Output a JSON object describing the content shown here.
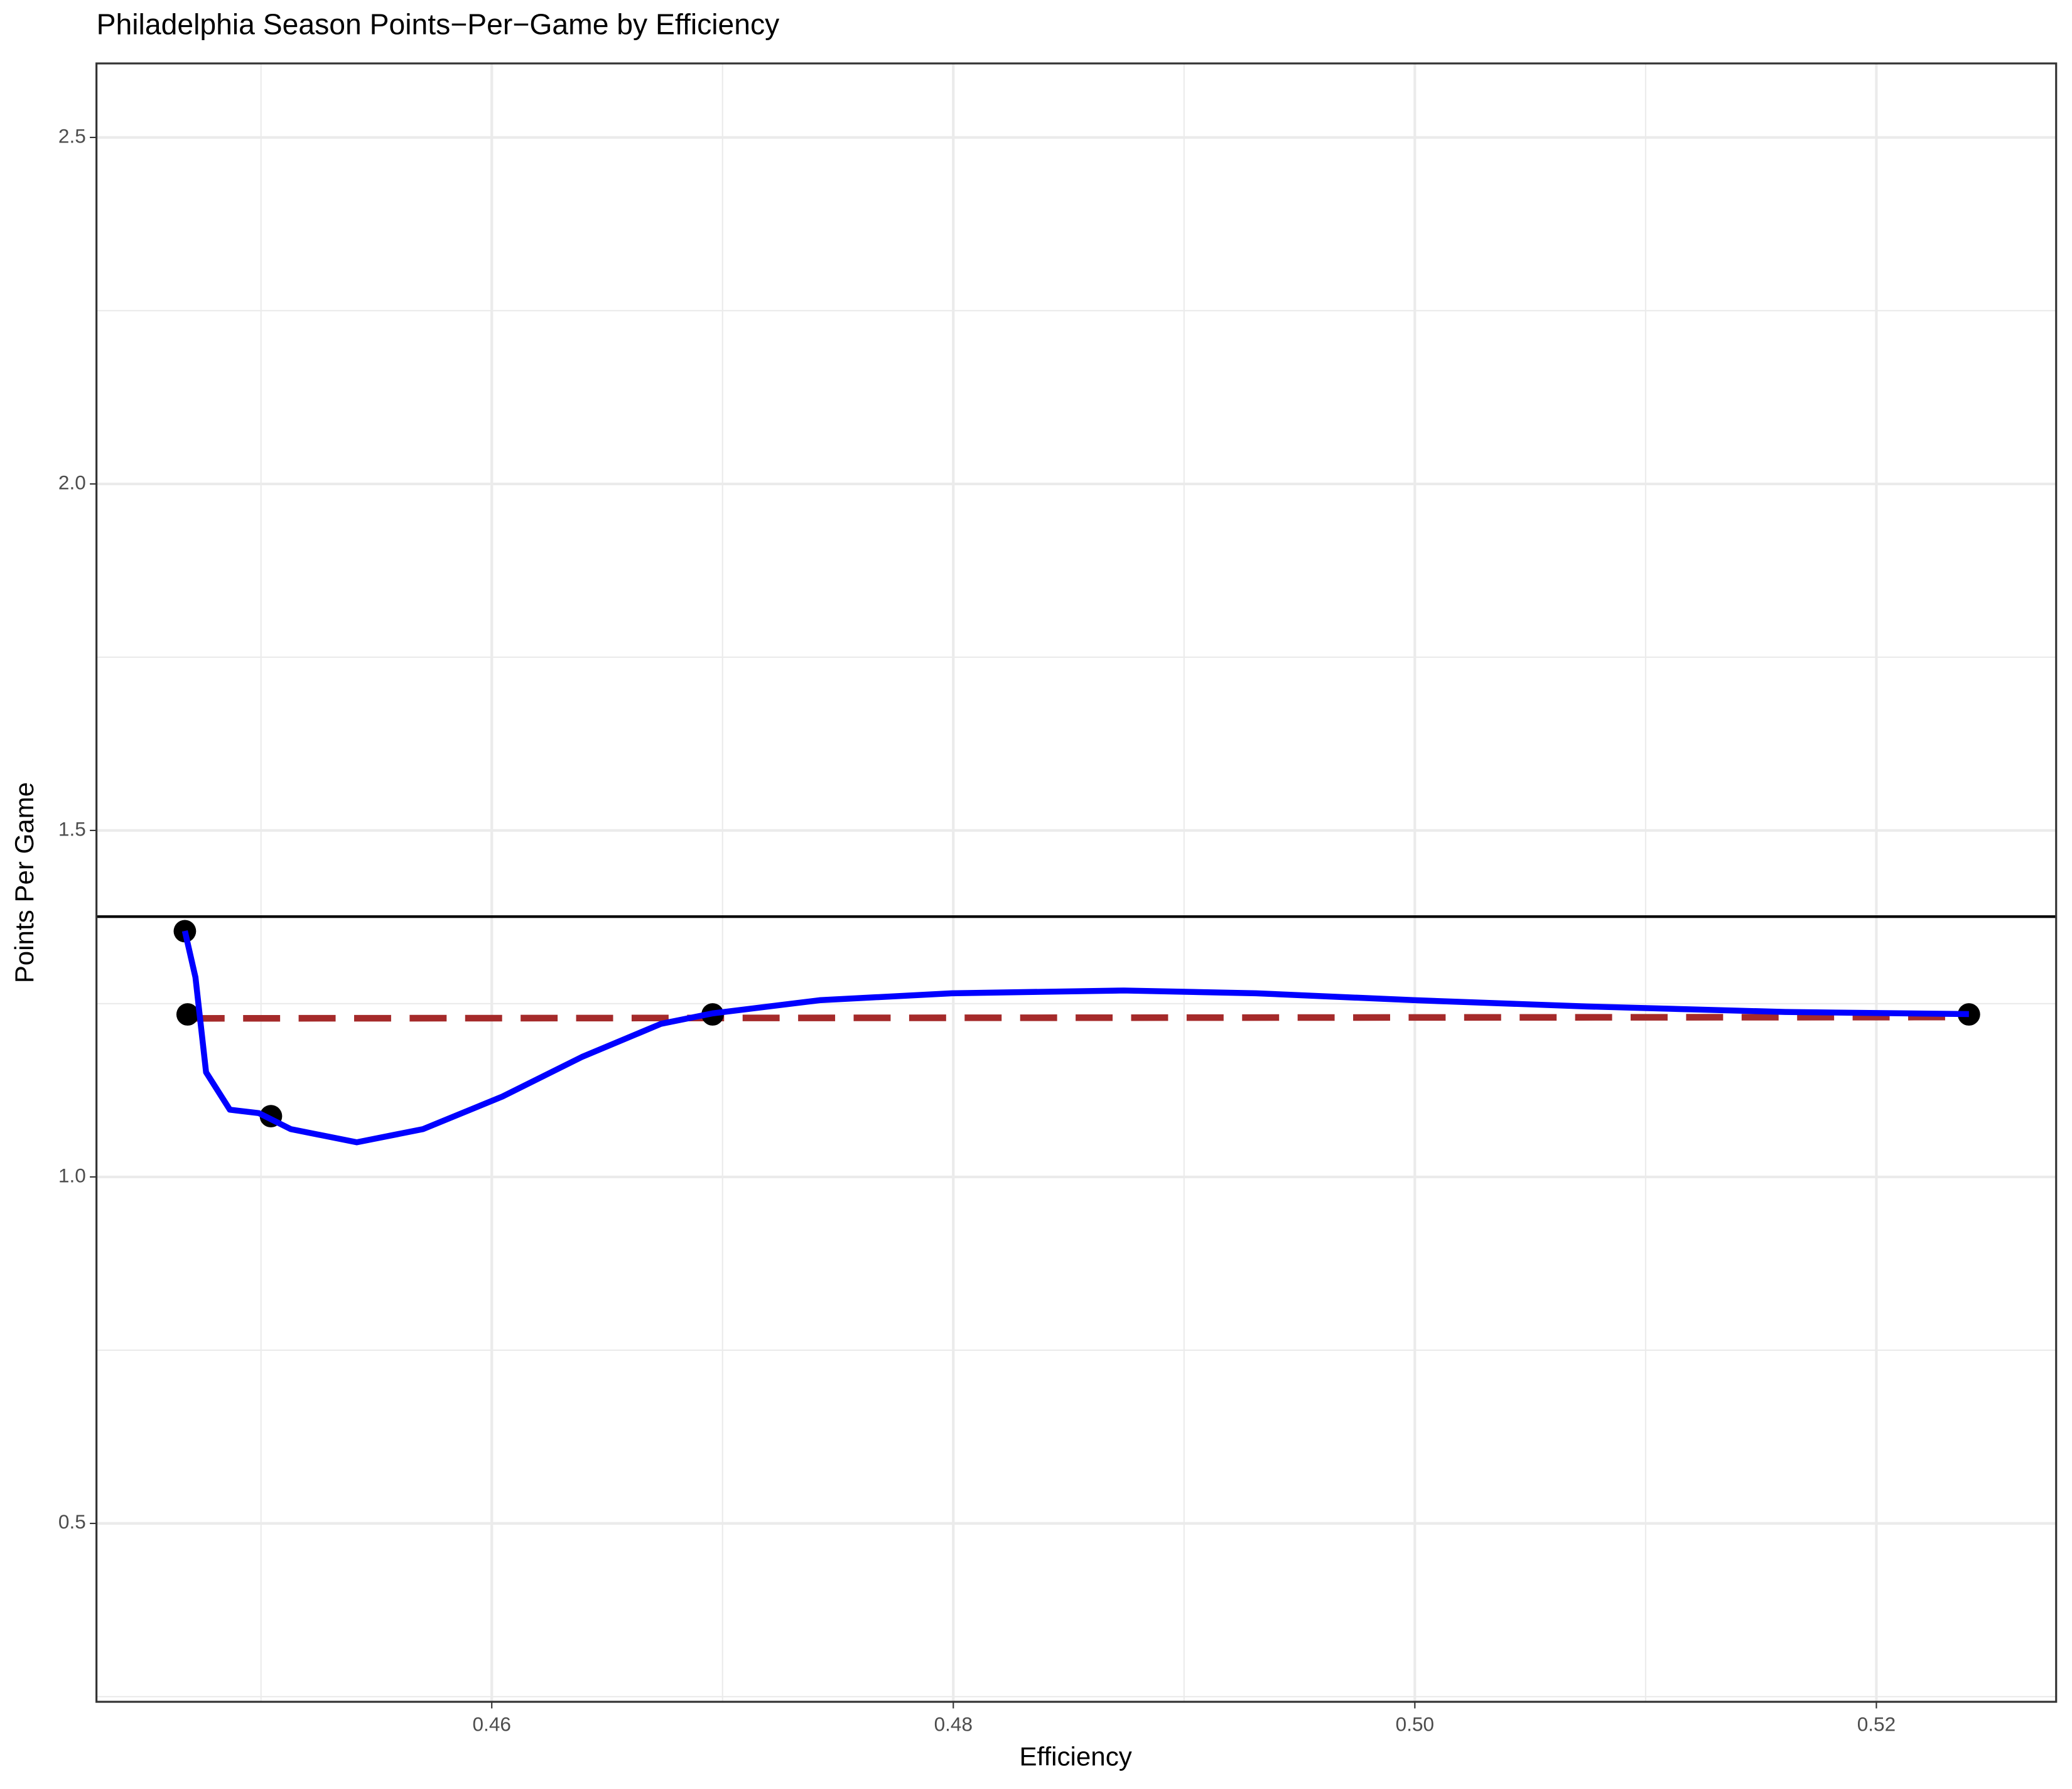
{
  "chart_data": {
    "type": "scatter",
    "title": "Philadelphia Season Points−Per−Game by Efficiency",
    "x_label": "Efficiency",
    "y_label": "Points Per Game",
    "xlim": [
      0.44287,
      0.52779
    ],
    "ylim": [
      0.2426,
      2.6068
    ],
    "xticks": [
      0.46,
      0.48,
      {
        "value": 0.5,
        "label": "0.50"
      },
      0.52
    ],
    "yticks": [
      0.5,
      {
        "value": 1.0,
        "label": "1.0"
      },
      1.5,
      {
        "value": 2.0,
        "label": "2.0"
      },
      2.5
    ],
    "x_minor_grid": [
      0.45,
      0.47,
      0.49,
      0.51
    ],
    "y_minor_grid": [
      0.25,
      0.75,
      1.25,
      1.75,
      2.25
    ],
    "grid": true,
    "points": {
      "color": "#000000",
      "x": [
        0.4467,
        0.44682,
        0.45043,
        0.46957,
        0.52401
      ],
      "values": [
        1.3546,
        1.2345,
        1.0877,
        1.2345,
        1.2345
      ]
    },
    "smooth": {
      "color": "#0000ff",
      "x": [
        0.4467,
        0.44716,
        0.44762,
        0.44865,
        0.44991,
        0.45129,
        0.45415,
        0.45702,
        0.46046,
        0.4639,
        0.46734,
        0.46957,
        0.47421,
        0.47994,
        0.48739,
        0.49312,
        0.5,
        0.50745,
        0.51605,
        0.52401
      ],
      "values": [
        1.355,
        1.288,
        1.151,
        1.097,
        1.092,
        1.069,
        1.05,
        1.069,
        1.116,
        1.173,
        1.221,
        1.236,
        1.255,
        1.265,
        1.269,
        1.265,
        1.255,
        1.246,
        1.238,
        1.235
      ]
    },
    "regression": {
      "color": "#a52a2a",
      "x": [
        0.44682,
        0.52401
      ],
      "values": [
        1.2288,
        1.2307
      ]
    },
    "hline": {
      "color": "#000000",
      "value": 1.3756
    }
  }
}
